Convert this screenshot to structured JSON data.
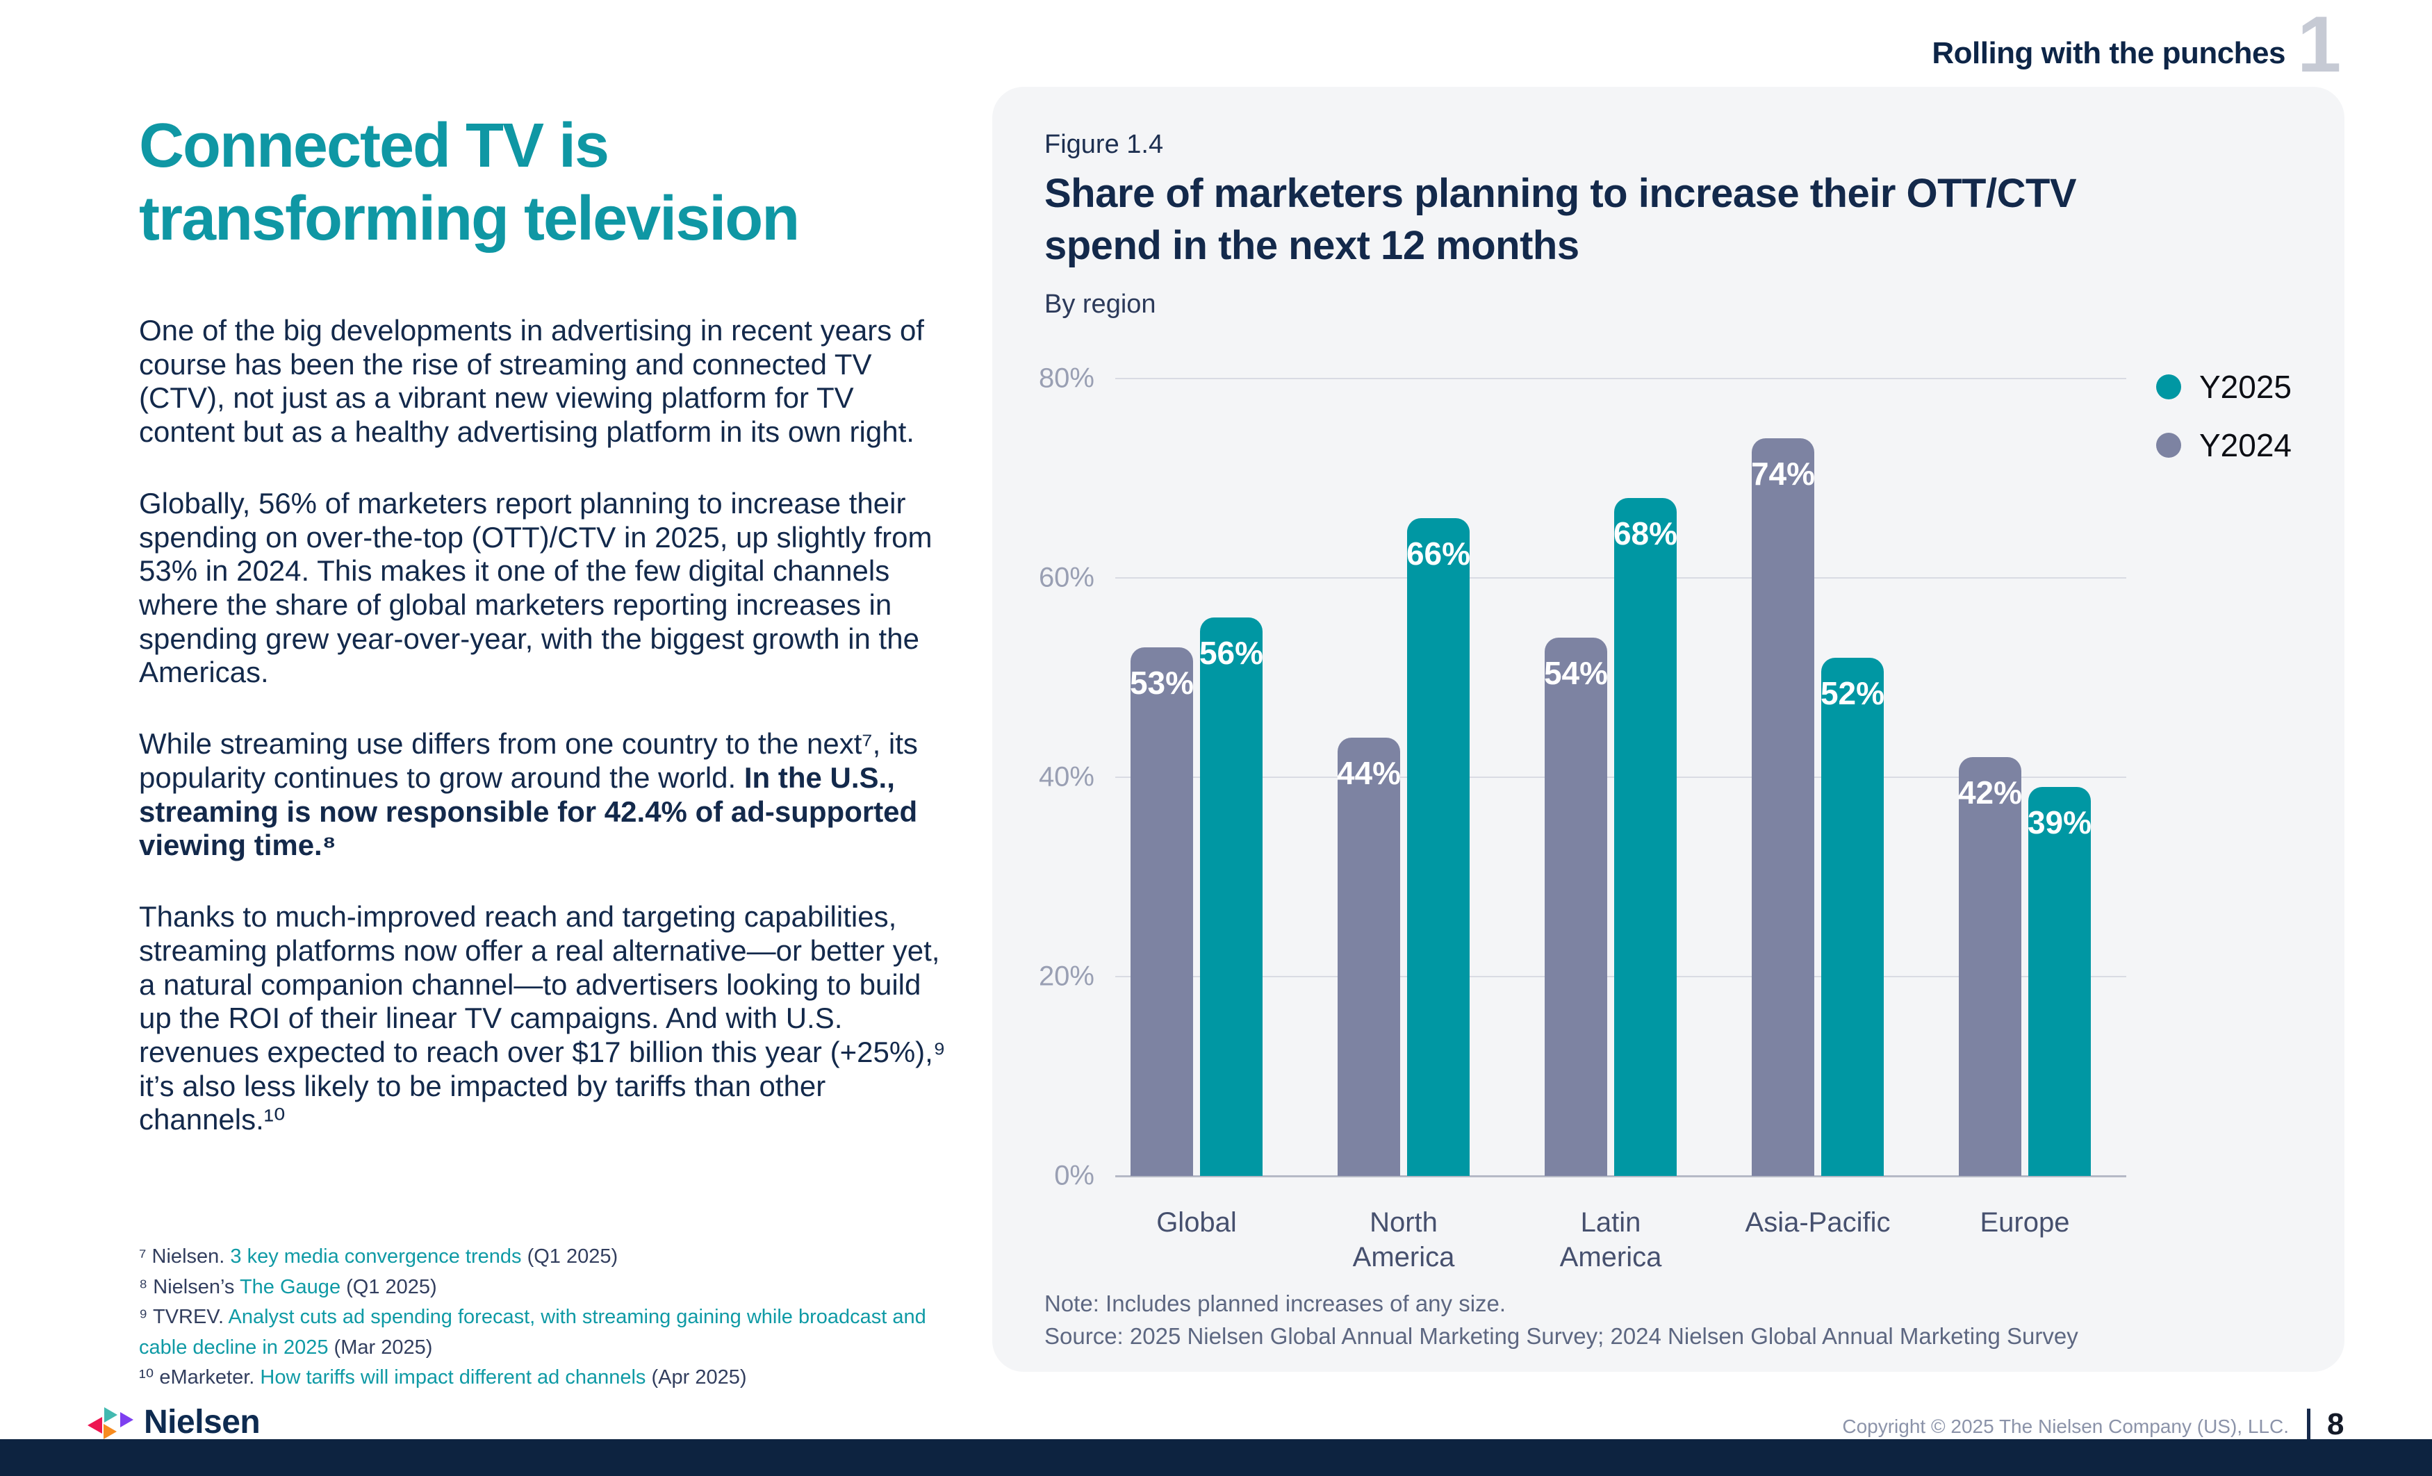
{
  "page": {
    "chapter_label": "Rolling with the punches",
    "chapter_number": "1",
    "page_number": "8",
    "copyright": "Copyright © 2025 The Nielsen Company (US), LLC.",
    "brand_name": "Nielsen",
    "logo_marks": [
      "triangle-left-crimson",
      "triangle-right-teal",
      "triangle-right-purple",
      "triangle-right-orange"
    ]
  },
  "article": {
    "headline_line1": "Connected TV is",
    "headline_line2": "transforming television",
    "p1": "One of the big developments in advertising in recent years of course has been the rise of streaming and connected TV (CTV), not just as a vibrant new viewing platform for TV content but as a healthy advertising platform in its own right.",
    "p2": "Globally, 56% of marketers report planning to increase their spending on over-the-top (OTT)/CTV in 2025, up slightly from 53% in 2024. This makes it one of the few digital channels where the share of global marketers reporting increases in spending grew year-over-year, with the biggest growth in the Americas.",
    "p3_normal": "While streaming use differs from one country to the next⁷, its popularity continues to grow around the world. ",
    "p3_bold": "In the U.S., streaming is now responsible for 42.4% of ad-supported viewing time.⁸",
    "p4": "Thanks to much-improved reach and targeting capabilities, streaming platforms now offer a real alternative—or better yet, a natural companion channel—to advertisers looking to build up the ROI of their linear TV campaigns. And with U.S. revenues expected to reach over $17 billion this year (+25%),⁹ it’s also less likely to be impacted by tariffs than other channels.¹⁰",
    "footnotes": [
      {
        "pre": "⁷ Nielsen. ",
        "link": "3 key media convergence trends",
        "post": " (Q1 2025)"
      },
      {
        "pre": "⁸ Nielsen’s ",
        "link": "The Gauge",
        "post": " (Q1 2025)"
      },
      {
        "pre": "⁹ TVREV. ",
        "link": "Analyst cuts ad spending forecast, with streaming gaining while broadcast and cable decline in 2025",
        "post": " (Mar 2025)"
      },
      {
        "pre": "¹⁰ eMarketer. ",
        "link": "How tariffs will impact different ad channels",
        "post": " (Apr 2025)"
      }
    ]
  },
  "figure": {
    "label": "Figure 1.4",
    "title_line1": "Share of marketers planning to increase their OTT/CTV",
    "title_line2": "spend in the next 12 months",
    "subtitle": "By region",
    "note": "Note: Includes planned increases of any size.",
    "source": "Source: 2025 Nielsen Global Annual Marketing Survey; 2024 Nielsen Global Annual Marketing Survey"
  },
  "chart_data": {
    "type": "bar",
    "title": "Share of marketers planning to increase their OTT/CTV spend in the next 12 months",
    "subtitle": "By region",
    "categories": [
      "Global",
      "North America",
      "Latin America",
      "Asia-Pacific",
      "Europe"
    ],
    "categories_display": [
      "Global",
      "North\nAmerica",
      "Latin\nAmerica",
      "Asia-Pacific",
      "Europe"
    ],
    "series": [
      {
        "name": "Y2024",
        "color": "#7d83a2",
        "values": [
          53,
          44,
          54,
          74,
          42
        ]
      },
      {
        "name": "Y2025",
        "color": "#0097a3",
        "values": [
          56,
          66,
          68,
          52,
          39
        ]
      }
    ],
    "bar_order": [
      "Y2024",
      "Y2025"
    ],
    "legend_order": [
      "Y2025",
      "Y2024"
    ],
    "legend_position": "top-right",
    "value_suffix": "%",
    "y_ticks": [
      "80%",
      "60%",
      "40%",
      "20%",
      "0%"
    ],
    "ylim": [
      0,
      80
    ],
    "xlabel": "",
    "ylabel": "",
    "grid": true
  },
  "colors": {
    "accent_teal": "#0f97a4",
    "bar_teal": "#0097a3",
    "bar_gray": "#7d83a2",
    "navy_text": "#13294b",
    "card_background": "#f4f5f7",
    "footer_bar": "#0d2340",
    "chapter_number_gray": "#c6cad4",
    "link_teal": "#0f9aa5"
  }
}
